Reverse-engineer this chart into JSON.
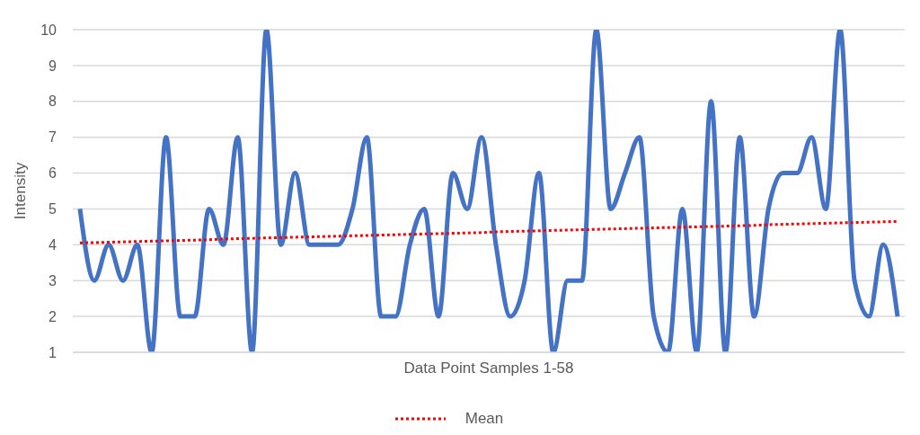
{
  "chart_data": {
    "type": "line",
    "xlabel": "Data Point Samples 1-58",
    "ylabel": "Intensity",
    "categories": [
      null,
      null,
      null,
      null,
      null,
      null,
      null,
      null,
      null,
      null,
      null,
      null,
      null,
      null,
      null,
      null,
      null,
      null,
      null,
      null,
      null,
      null,
      null,
      null,
      null,
      null,
      null,
      null,
      null,
      null,
      null,
      null,
      null,
      null,
      null,
      null,
      null,
      null,
      null,
      null,
      null,
      null,
      null,
      null,
      null,
      null,
      null,
      null,
      null,
      null,
      null,
      null,
      null,
      null,
      null,
      null,
      null,
      null
    ],
    "ylim": [
      1,
      10
    ],
    "yticks": [
      1,
      2,
      3,
      4,
      5,
      6,
      7,
      8,
      9,
      10
    ],
    "grid": "y",
    "legend": "bottom",
    "series": [
      {
        "color": "#4472c4",
        "values": [
          5,
          3,
          4,
          3,
          4,
          1,
          7,
          2,
          2,
          5,
          4,
          7,
          1,
          10,
          4,
          6,
          4,
          4,
          4,
          5,
          7,
          2,
          2,
          4,
          5,
          2,
          6,
          5,
          7,
          4,
          2,
          3,
          6,
          1,
          3,
          3,
          10,
          5,
          6,
          7,
          2,
          1,
          5,
          1,
          8,
          1,
          7,
          2,
          5,
          6,
          6,
          7,
          5,
          10,
          3,
          2,
          4,
          2
        ]
      },
      {
        "name": "Mean",
        "type": "line",
        "color": "#ff0000",
        "line_style": "dotted",
        "values": [
          4.05,
          4.06,
          4.07,
          4.08,
          4.09,
          4.1,
          4.11,
          4.12,
          4.13,
          4.14,
          4.16,
          4.17,
          4.18,
          4.19,
          4.2,
          4.21,
          4.22,
          4.23,
          4.24,
          4.25,
          4.26,
          4.27,
          4.28,
          4.29,
          4.3,
          4.31,
          4.32,
          4.33,
          4.34,
          4.36,
          4.37,
          4.38,
          4.39,
          4.4,
          4.41,
          4.42,
          4.43,
          4.44,
          4.45,
          4.46,
          4.47,
          4.48,
          4.49,
          4.5,
          4.51,
          4.52,
          4.53,
          4.54,
          4.56,
          4.57,
          4.58,
          4.59,
          4.6,
          4.61,
          4.62,
          4.63,
          4.64,
          4.65
        ]
      }
    ]
  }
}
